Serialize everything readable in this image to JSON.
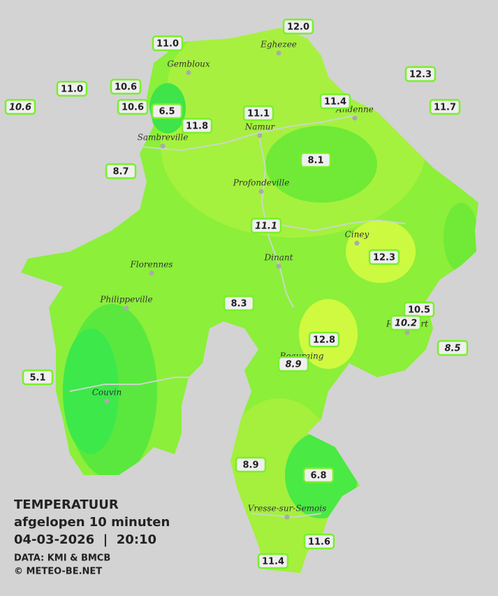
{
  "title": "TEMPERATUUR",
  "subtitle": "afgelopen 10 minuten",
  "timestamp": "04-03-2026  |  20:10",
  "source": "DATA: KMI & BMCB",
  "copyright": "© METEO-BE.NET",
  "towns": [
    "Eghezee",
    "Gembloux",
    "Andenne",
    "Namur",
    "Sambreville",
    "Profondeville",
    "Ciney",
    "Dinant",
    "Florennes",
    "Philippeville",
    "Rochefort",
    "Beauraing",
    "Couvin",
    "Vresse-sur-Semois"
  ],
  "stations": [
    {
      "value": "12.0"
    },
    {
      "value": "11.0"
    },
    {
      "value": "12.3"
    },
    {
      "value": "11.0"
    },
    {
      "value": "10.6"
    },
    {
      "value": "10.6",
      "italic": true
    },
    {
      "value": "10.6"
    },
    {
      "value": "6.5"
    },
    {
      "value": "11.4"
    },
    {
      "value": "11.7"
    },
    {
      "value": "11.1"
    },
    {
      "value": "11.8"
    },
    {
      "value": "8.1"
    },
    {
      "value": "8.7"
    },
    {
      "value": "11.1",
      "italic": true
    },
    {
      "value": "12.3"
    },
    {
      "value": "8.3"
    },
    {
      "value": "10.5"
    },
    {
      "value": "10.2",
      "italic": true
    },
    {
      "value": "12.8"
    },
    {
      "value": "8.5",
      "italic": true
    },
    {
      "value": "8.9",
      "italic": true
    },
    {
      "value": "5.1"
    },
    {
      "value": "8.9"
    },
    {
      "value": "6.8"
    },
    {
      "value": "11.6"
    },
    {
      "value": "11.4"
    }
  ]
}
